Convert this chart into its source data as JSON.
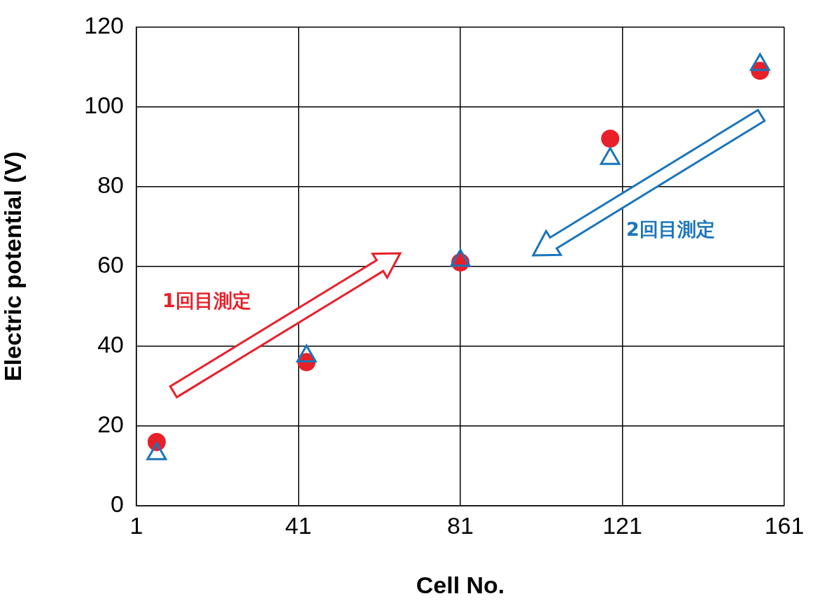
{
  "chart_data": {
    "type": "scatter",
    "xlabel": "Cell No.",
    "ylabel": "Electric potential (V)",
    "x": [
      6,
      43,
      81,
      118,
      155
    ],
    "series": [
      {
        "color": "#e8202a",
        "marker": "circle",
        "values": [
          16,
          36,
          61,
          92,
          109
        ]
      },
      {
        "color": "#1a75bb",
        "marker": "triangle",
        "values": [
          13,
          37.5,
          61.5,
          87,
          110.5
        ]
      }
    ],
    "xlim": [
      1,
      161
    ],
    "xticks": [
      1,
      41,
      81,
      121,
      161
    ],
    "ylim": [
      0,
      120
    ],
    "yticks": [
      0,
      20,
      40,
      60,
      80,
      100,
      120
    ],
    "grid": true,
    "legend": false,
    "annotations": [
      "1回目測定",
      "2回目測定"
    ]
  }
}
